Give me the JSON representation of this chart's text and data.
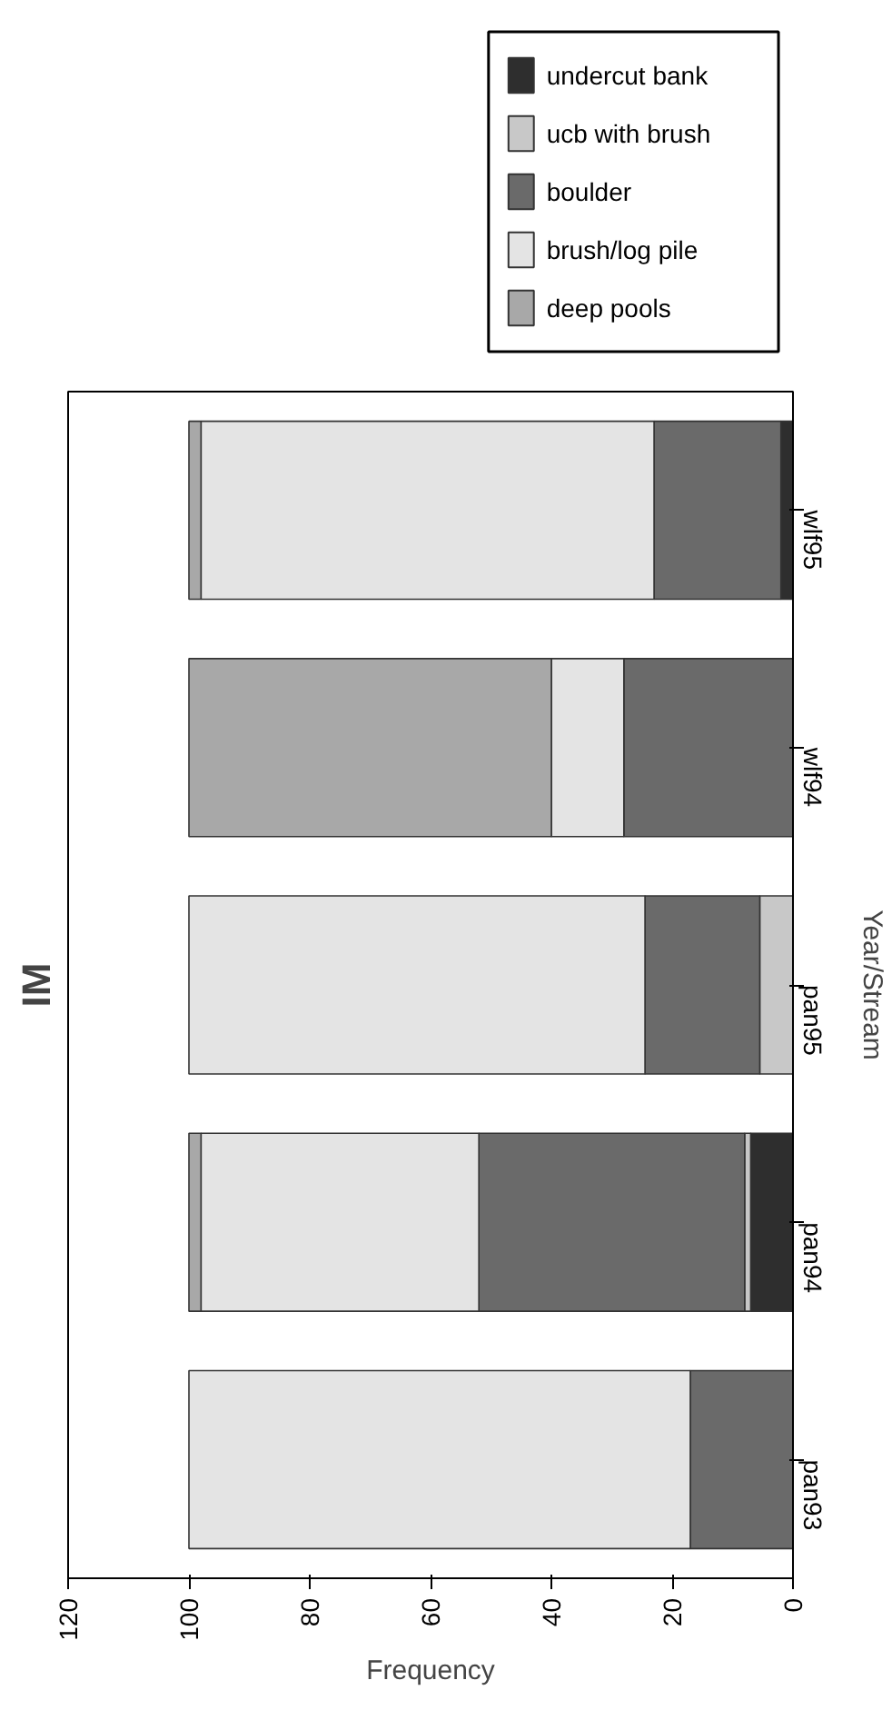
{
  "chart_data": {
    "type": "bar",
    "orientation": "horizontal",
    "stacked": true,
    "title": "IM",
    "xlabel": "Frequency",
    "ylabel": "Year/Stream",
    "categories": [
      "wlf95",
      "wlf94",
      "pan95",
      "pan94",
      "pan93"
    ],
    "series": [
      {
        "name": "undercut bank",
        "color": "#2e2e2e",
        "values": [
          2,
          0,
          0,
          7,
          0
        ]
      },
      {
        "name": "ucb with brush",
        "color": "#c8c8c8",
        "values": [
          0,
          0,
          5.5,
          1,
          0
        ]
      },
      {
        "name": "boulder",
        "color": "#6a6a6a",
        "values": [
          21,
          28,
          19,
          44,
          17
        ]
      },
      {
        "name": "brush/log pile",
        "color": "#e4e4e4",
        "values": [
          75,
          12,
          75.5,
          46,
          83
        ]
      },
      {
        "name": "deep pools",
        "color": "#a8a8a8",
        "values": [
          2,
          60,
          0,
          2,
          0
        ]
      }
    ],
    "xlim": [
      120,
      0
    ],
    "xticks": [
      0,
      20,
      40,
      60,
      80,
      100,
      120
    ],
    "grid": false,
    "legend": "top"
  }
}
